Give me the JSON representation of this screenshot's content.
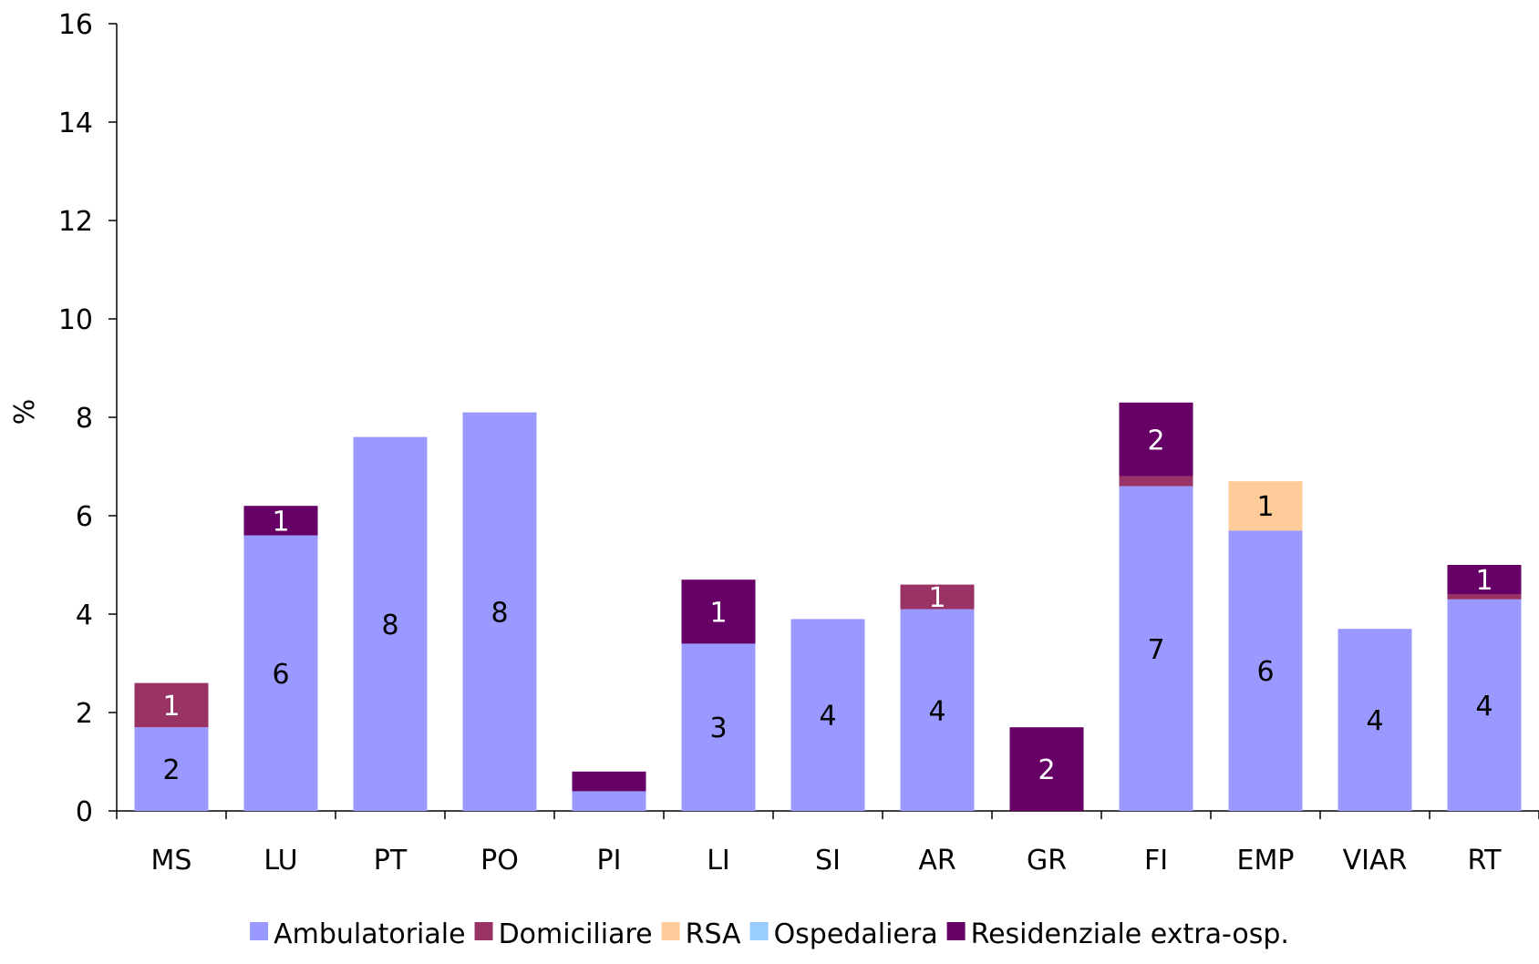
{
  "chart_data": {
    "type": "bar",
    "stacked": true,
    "title": "",
    "xlabel": "",
    "ylabel": "%",
    "ylim": [
      0,
      16
    ],
    "yticks": [
      "0",
      "2",
      "4",
      "6",
      "8",
      "10",
      "12",
      "14",
      "16"
    ],
    "grid": false,
    "legend_position": "bottom",
    "categories": [
      "MS",
      "LU",
      "PT",
      "PO",
      "PI",
      "LI",
      "SI",
      "AR",
      "GR",
      "FI",
      "EMP",
      "VIAR",
      "RT"
    ],
    "series": [
      {
        "name": "Ambulatoriale",
        "color": "#9999ff",
        "values": [
          1.7,
          5.6,
          7.6,
          8.1,
          0.4,
          3.4,
          3.9,
          4.1,
          0,
          6.6,
          5.7,
          3.7,
          4.3
        ],
        "labels": [
          "2",
          "6",
          "8",
          "8",
          "",
          "3",
          "4",
          "4",
          "",
          "7",
          "6",
          "4",
          "4"
        ]
      },
      {
        "name": "Domiciliare",
        "color": "#993366",
        "values": [
          0.9,
          0,
          0,
          0,
          0,
          0,
          0,
          0.5,
          0,
          0.2,
          0,
          0,
          0.1
        ],
        "labels": [
          "1",
          "",
          "",
          "",
          "",
          "",
          "",
          "1",
          "",
          "",
          "",
          "",
          ""
        ]
      },
      {
        "name": "RSA",
        "color": "#ffcc99",
        "values": [
          0,
          0,
          0,
          0,
          0,
          0,
          0,
          0,
          0,
          0,
          1.0,
          0,
          0
        ],
        "labels": [
          "",
          "",
          "",
          "",
          "",
          "",
          "",
          "",
          "",
          "",
          "1",
          "",
          ""
        ]
      },
      {
        "name": "Ospedaliera",
        "color": "#99ccff",
        "values": [
          0,
          0,
          0,
          0,
          0,
          0,
          0,
          0,
          0,
          0,
          0,
          0,
          0
        ],
        "labels": [
          "",
          "",
          "",
          "",
          "",
          "",
          "",
          "",
          "",
          "",
          "",
          "",
          ""
        ]
      },
      {
        "name": "Residenziale extra-osp.",
        "color": "#660066",
        "values": [
          0,
          0.6,
          0,
          0,
          0.4,
          1.3,
          0,
          0,
          1.7,
          1.5,
          0,
          0,
          0.6
        ],
        "labels": [
          "",
          "1",
          "",
          "",
          "",
          "1",
          "",
          "",
          "2",
          "2",
          "",
          "",
          "1"
        ]
      }
    ]
  }
}
